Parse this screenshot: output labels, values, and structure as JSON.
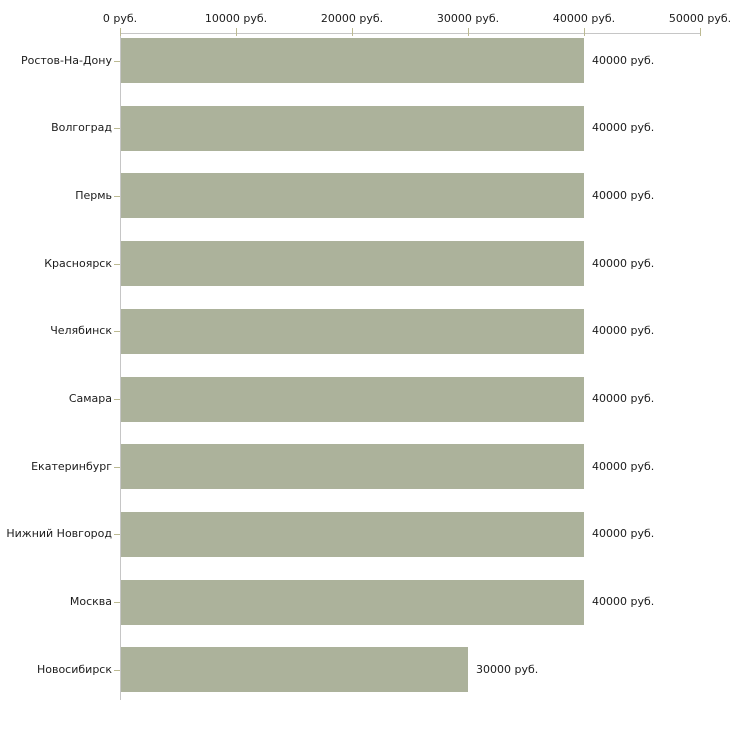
{
  "chart_data": {
    "type": "bar",
    "orientation": "horizontal",
    "title": "",
    "xlabel": "",
    "ylabel": "",
    "categories": [
      "Ростов-На-Дону",
      "Волгоград",
      "Пермь",
      "Красноярск",
      "Челябинск",
      "Самара",
      "Екатеринбург",
      "Нижний Новгород",
      "Москва",
      "Новосибирск"
    ],
    "values": [
      40000,
      40000,
      40000,
      40000,
      40000,
      40000,
      40000,
      40000,
      40000,
      30000
    ],
    "value_labels": [
      "40000 руб.",
      "40000 руб.",
      "40000 руб.",
      "40000 руб.",
      "40000 руб.",
      "40000 руб.",
      "40000 руб.",
      "40000 руб.",
      "40000 руб.",
      "30000 руб."
    ],
    "x_ticks": [
      0,
      10000,
      20000,
      30000,
      40000,
      50000
    ],
    "x_tick_labels": [
      "0 руб.",
      "10000 руб.",
      "20000 руб.",
      "30000 руб.",
      "40000 руб.",
      "50000 руб."
    ],
    "xlim": [
      0,
      50000
    ],
    "unit": "руб.",
    "grid": false,
    "legend": false,
    "axis_position": "top",
    "colors": {
      "bar": "#acb29b",
      "axis_line": "#c6c6c6",
      "tick_mark": "#bcba92",
      "text": "#1c1c1c",
      "background": "#ffffff"
    }
  }
}
